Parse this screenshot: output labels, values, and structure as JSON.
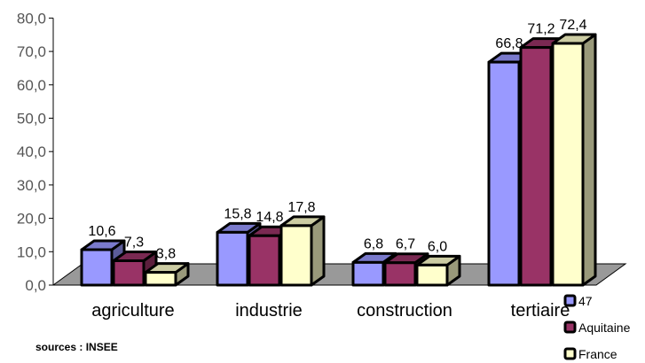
{
  "chart_data": {
    "type": "bar",
    "categories": [
      "agriculture",
      "industrie",
      "construction",
      "tertiaire"
    ],
    "series": [
      {
        "name": "47",
        "values": [
          10.6,
          15.8,
          6.8,
          66.8
        ],
        "labels": [
          "10,6",
          "15,8",
          "6,8",
          "66,8"
        ]
      },
      {
        "name": "Aquitaine",
        "values": [
          7.3,
          14.8,
          6.7,
          71.2
        ],
        "labels": [
          "7,3",
          "14,8",
          "6,7",
          "71,2"
        ]
      },
      {
        "name": "France",
        "values": [
          3.8,
          17.8,
          6.0,
          72.4
        ],
        "labels": [
          "3,8",
          "17,8",
          "6,0",
          "72,4"
        ]
      }
    ],
    "ylim": [
      0,
      80
    ],
    "yticks": [
      "0,0",
      "10,0",
      "20,0",
      "30,0",
      "40,0",
      "50,0",
      "60,0",
      "70,0",
      "80,0"
    ],
    "legend_position": "bottom-right",
    "grid": false,
    "three_d": true
  },
  "colors": {
    "series": [
      "#9999ff",
      "#993366",
      "#ffffcc"
    ],
    "floor": "#999999",
    "outline": "#000000"
  },
  "source_note": "sources : INSEE"
}
